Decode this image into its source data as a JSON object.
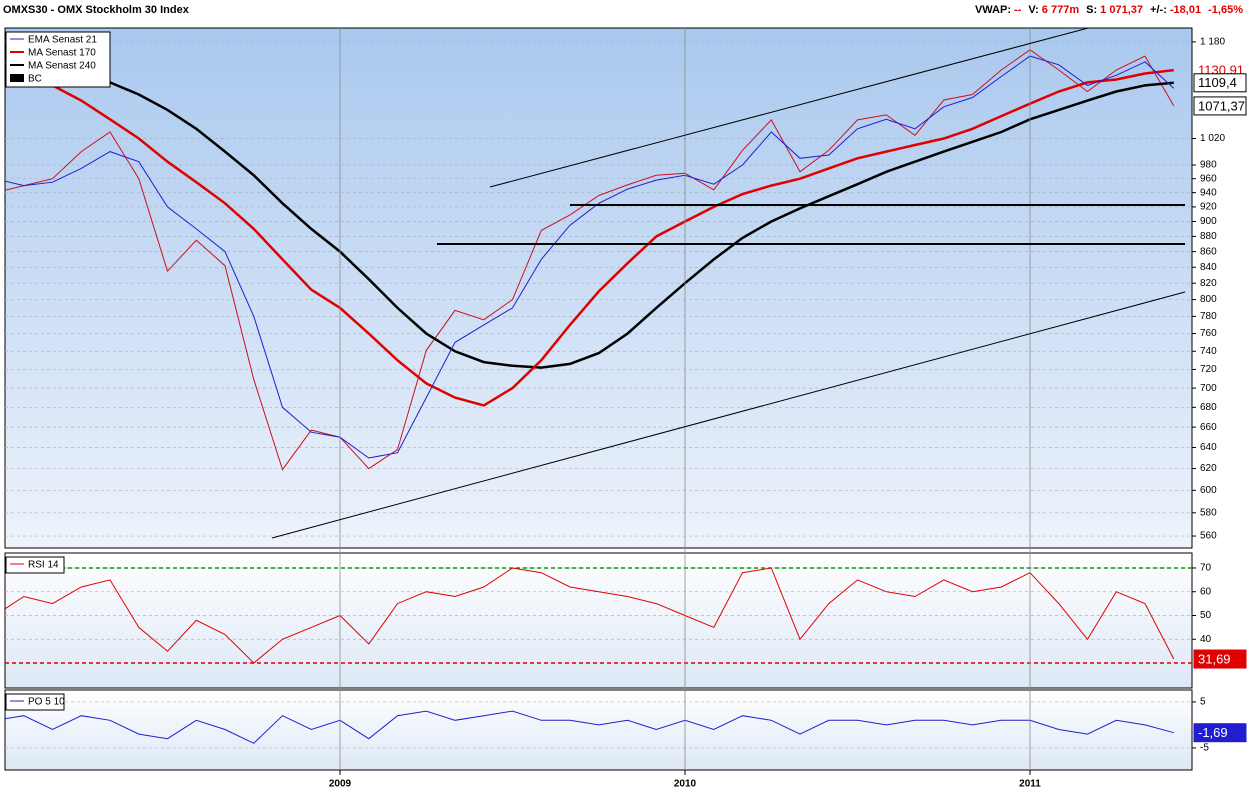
{
  "header": {
    "title": "OMXS30 - OMX Stockholm 30 Index",
    "items": [
      {
        "label": "VWAP:",
        "value": "--"
      },
      {
        "label": "V:",
        "value": "6 777m"
      },
      {
        "label": "S:",
        "value": "1 071,37"
      },
      {
        "label": "+/-:",
        "value": "-18,01"
      },
      {
        "value": "-1,65%"
      }
    ]
  },
  "chart_data": [
    {
      "type": "line",
      "log_scale": true,
      "grid": true,
      "legend": "top-left",
      "ylim": [
        550,
        1205
      ],
      "yticks": [
        560,
        580,
        600,
        620,
        640,
        660,
        680,
        700,
        720,
        740,
        760,
        780,
        800,
        820,
        840,
        860,
        880,
        900,
        920,
        940,
        960,
        980,
        {
          "value": 1020,
          "label": "1 020"
        },
        {
          "value": 1180,
          "label": "1 180"
        }
      ],
      "series": [
        {
          "name": "EMA  Senast 21",
          "color": "#1f1fd0",
          "width": 1,
          "values": [
            960,
            950,
            955,
            975,
            1000,
            985,
            920,
            890,
            860,
            780,
            680,
            655,
            650,
            630,
            635,
            690,
            750,
            770,
            790,
            850,
            895,
            925,
            945,
            958,
            965,
            952,
            980,
            1030,
            990,
            995,
            1035,
            1050,
            1035,
            1070,
            1085,
            1120,
            1155,
            1140,
            1105,
            1122,
            1145,
            1100
          ]
        },
        {
          "name": "MA  Senast 170",
          "color": "#e00000",
          "width": 2.5,
          "last_label": "1130,91",
          "label_box": "plain",
          "values": [
            1150,
            1130,
            1105,
            1080,
            1050,
            1020,
            985,
            955,
            925,
            890,
            850,
            812,
            790,
            760,
            730,
            705,
            690,
            682,
            700,
            730,
            770,
            810,
            845,
            880,
            900,
            920,
            938,
            950,
            960,
            975,
            990,
            1000,
            1010,
            1020,
            1035,
            1055,
            1075,
            1095,
            1110,
            1115,
            1125,
            1130.91
          ]
        },
        {
          "name": "MA  Senast 240",
          "color": "#000000",
          "width": 2.5,
          "last_label": "1109,4",
          "label_box": "outline",
          "values": [
            1160,
            1150,
            1138,
            1125,
            1110,
            1090,
            1065,
            1035,
            1000,
            965,
            925,
            890,
            860,
            825,
            790,
            760,
            740,
            728,
            724,
            722,
            726,
            738,
            760,
            790,
            820,
            850,
            878,
            900,
            918,
            935,
            952,
            970,
            985,
            1000,
            1015,
            1030,
            1050,
            1065,
            1080,
            1095,
            1105,
            1109.4
          ]
        },
        {
          "name": "BC",
          "color": "#cc1020",
          "legend_color": "#000000",
          "width": 1,
          "last_label": "1071,37",
          "label_box": "outline",
          "values": [
            940,
            950,
            960,
            1000,
            1030,
            960,
            835,
            875,
            842,
            709,
            619,
            657,
            650,
            620,
            638,
            741,
            787,
            776,
            800,
            888,
            909,
            936,
            951,
            965,
            968,
            944,
            1002,
            1049,
            970,
            1002,
            1049,
            1057,
            1025,
            1081,
            1090,
            1131,
            1166,
            1131,
            1095,
            1131,
            1155,
            1071.37
          ]
        }
      ]
    },
    {
      "type": "line",
      "grid": true,
      "legend": "top-left",
      "ylim": [
        19.5,
        76.3
      ],
      "yticks": [
        40,
        50,
        60,
        70
      ],
      "levels": [
        {
          "value": 70,
          "color": "#00a000"
        },
        {
          "value": 30,
          "color": "#e00000"
        }
      ],
      "series": [
        {
          "name": "RSI  14",
          "color": "#e00000",
          "width": 1,
          "last_label": "31,69",
          "label_box": "filled",
          "values": [
            50,
            58,
            55,
            62,
            65,
            45,
            35,
            48,
            42,
            30,
            40,
            45,
            50,
            38,
            55,
            60,
            58,
            62,
            70,
            68,
            62,
            60,
            58,
            55,
            50,
            45,
            68,
            70,
            40,
            55,
            65,
            60,
            58,
            65,
            60,
            62,
            68,
            55,
            40,
            60,
            55,
            31.69
          ]
        }
      ]
    },
    {
      "type": "line",
      "grid": true,
      "legend": "top-left",
      "ylim": [
        -9.8,
        7.6
      ],
      "yticks": [
        -5,
        5
      ],
      "categories": [
        null,
        null,
        null,
        null,
        null,
        null,
        null,
        null,
        null,
        null,
        null,
        null,
        "2009",
        null,
        null,
        null,
        null,
        null,
        null,
        null,
        null,
        null,
        null,
        null,
        "2010",
        null,
        null,
        null,
        null,
        null,
        null,
        null,
        null,
        null,
        null,
        null,
        "2011",
        null,
        null,
        null,
        null,
        null
      ],
      "series": [
        {
          "name": "PO  5 10",
          "color": "#1f1fd0",
          "width": 1,
          "last_label": "-1,69",
          "label_box": "filled",
          "values": [
            1,
            2,
            -1,
            2,
            1,
            -2,
            -3,
            1,
            -1,
            -4,
            2,
            -1,
            1,
            -3,
            2,
            3,
            1,
            2,
            3,
            1,
            1,
            0,
            1,
            -1,
            1,
            -1,
            2,
            1,
            -2,
            1,
            1,
            0,
            1,
            1,
            0,
            1,
            1,
            -1,
            -2,
            1,
            0,
            -1.69
          ]
        }
      ]
    }
  ]
}
